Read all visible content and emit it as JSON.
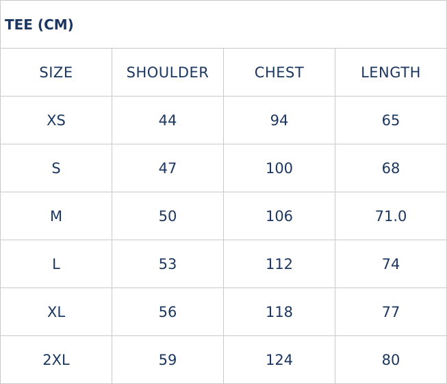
{
  "title": "TEE (CM)",
  "headers": [
    "SIZE",
    "SHOULDER",
    "CHEST",
    "LENGTH"
  ],
  "rows": [
    [
      "XS",
      "44",
      "94",
      "65"
    ],
    [
      "S",
      "47",
      "100",
      "68"
    ],
    [
      "M",
      "50",
      "106",
      "71.0"
    ],
    [
      "L",
      "53",
      "112",
      "74"
    ],
    [
      "XL",
      "56",
      "118",
      "77"
    ],
    [
      "2XL",
      "59",
      "124",
      "80"
    ]
  ],
  "colors": {
    "text": "#1b3660",
    "border": "#c9c9c9"
  }
}
